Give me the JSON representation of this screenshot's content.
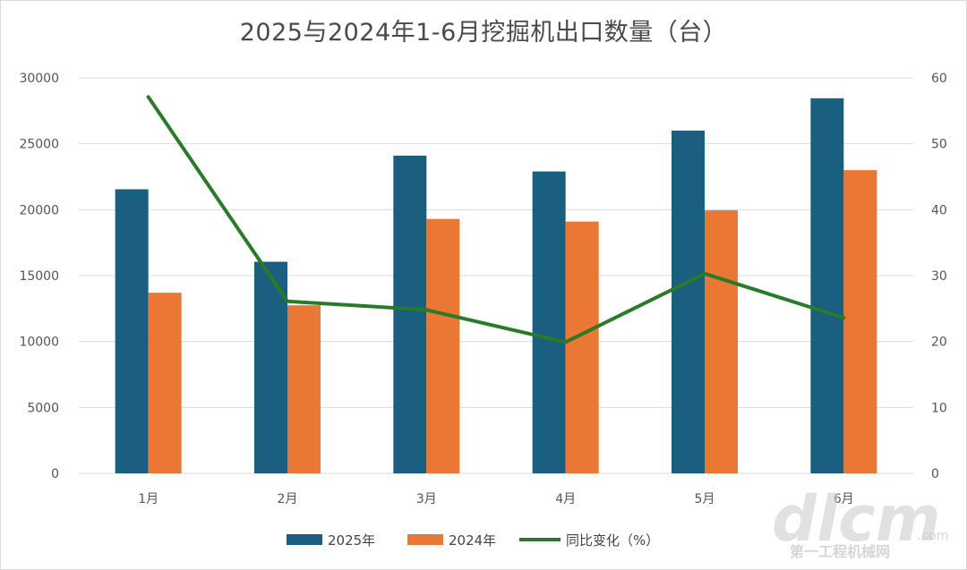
{
  "chart_data": {
    "type": "bar",
    "title": "2025与2024年1-6月挖掘机出口数量（台）",
    "categories": [
      "1月",
      "2月",
      "3月",
      "4月",
      "5月",
      "6月"
    ],
    "series": [
      {
        "name": "2025年",
        "type": "bar",
        "axis": "left",
        "values": [
          21550,
          16050,
          24100,
          22900,
          26000,
          28450
        ]
      },
      {
        "name": "2024年",
        "type": "bar",
        "axis": "left",
        "values": [
          13700,
          12750,
          19300,
          19100,
          19950,
          23000
        ]
      },
      {
        "name": "同比变化（%）",
        "type": "line",
        "axis": "right",
        "values": [
          57.1,
          26.1,
          24.8,
          19.9,
          30.3,
          23.6
        ]
      }
    ],
    "y_left": {
      "ylim": [
        0,
        30000
      ],
      "ticks": [
        0,
        5000,
        10000,
        15000,
        20000,
        25000,
        30000
      ]
    },
    "y_right": {
      "ylim": [
        0,
        60
      ],
      "ticks": [
        0,
        10,
        20,
        30,
        40,
        50,
        60
      ]
    },
    "grid": true,
    "legend": "bottom",
    "colors": {
      "2025年": "#1a5e80",
      "2024年": "#ea7733",
      "同比变化（%）": "#2a7a2a",
      "grid": "#d9d9d9"
    }
  },
  "watermark": {
    "main": "dlcm",
    "sub": "第一工程机械网",
    "suffix": ".com"
  }
}
